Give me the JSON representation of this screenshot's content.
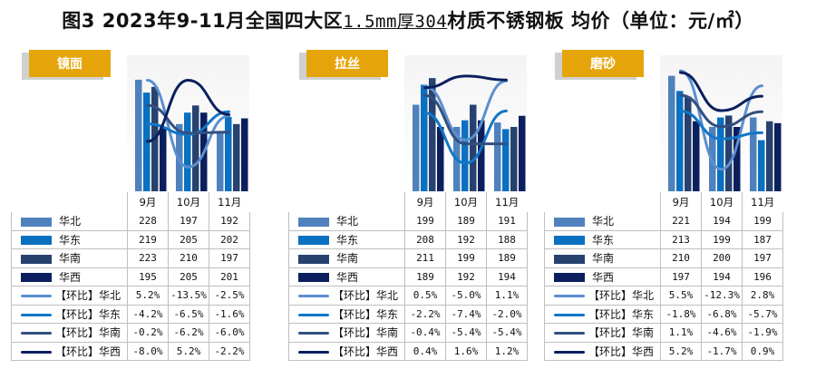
{
  "title": {
    "prefix": "图3 2023年9-11月全国四大区",
    "underlined": "1.5mm厚304",
    "suffix": "材质不锈钢板 均价（单位：元/㎡）"
  },
  "colors": {
    "tab": "#e5a50a",
    "华北": "#4f81bd",
    "华东": "#0a70c0",
    "华南": "#27426e",
    "华西": "#0b1f5e"
  },
  "chart_data": [
    {
      "type": "bar",
      "title": "镜面",
      "categories": [
        "9月",
        "10月",
        "11月"
      ],
      "series": [
        {
          "name": "华北",
          "values": [
            228,
            197,
            192
          ]
        },
        {
          "name": "华东",
          "values": [
            219,
            205,
            202
          ]
        },
        {
          "name": "华南",
          "values": [
            223,
            210,
            197
          ]
        },
        {
          "name": "华西",
          "values": [
            195,
            205,
            201
          ]
        }
      ],
      "mom_series": [
        {
          "name": "【环比】华北",
          "values": [
            "5.2%",
            "-13.5%",
            "-2.5%"
          ],
          "numeric": [
            5.2,
            -13.5,
            -2.5
          ]
        },
        {
          "name": "【环比】华东",
          "values": [
            "-4.2%",
            "-6.5%",
            "-1.6%"
          ],
          "numeric": [
            -4.2,
            -6.5,
            -1.6
          ]
        },
        {
          "name": "【环比】华南",
          "values": [
            "-0.2%",
            "-6.2%",
            "-6.0%"
          ],
          "numeric": [
            -0.2,
            -6.2,
            -6.0
          ]
        },
        {
          "name": "【环比】华西",
          "values": [
            "-8.0%",
            "5.2%",
            "-2.2%"
          ],
          "numeric": [
            -8.0,
            5.2,
            -2.2
          ]
        }
      ],
      "ylim": [
        150,
        240
      ],
      "y2lim": [
        -16,
        9
      ]
    },
    {
      "type": "bar",
      "title": "拉丝",
      "categories": [
        "9月",
        "10月",
        "11月"
      ],
      "series": [
        {
          "name": "华北",
          "values": [
            199,
            189,
            191
          ]
        },
        {
          "name": "华东",
          "values": [
            208,
            192,
            188
          ]
        },
        {
          "name": "华南",
          "values": [
            211,
            199,
            189
          ]
        },
        {
          "name": "华西",
          "values": [
            189,
            192,
            194
          ]
        }
      ],
      "mom_series": [
        {
          "name": "【环比】华北",
          "values": [
            "0.5%",
            "-5.0%",
            "1.1%"
          ],
          "numeric": [
            0.5,
            -5.0,
            1.1
          ]
        },
        {
          "name": "【环比】华东",
          "values": [
            "-2.2%",
            "-7.4%",
            "-2.0%"
          ],
          "numeric": [
            -2.2,
            -7.4,
            -2.0
          ]
        },
        {
          "name": "【环比】华南",
          "values": [
            "-0.4%",
            "-5.4%",
            "-5.4%"
          ],
          "numeric": [
            -0.4,
            -5.4,
            -5.4
          ]
        },
        {
          "name": "【环比】华西",
          "values": [
            "0.4%",
            "1.6%",
            "1.2%"
          ],
          "numeric": [
            0.4,
            1.6,
            1.2
          ]
        }
      ],
      "ylim": [
        160,
        218
      ],
      "y2lim": [
        -9,
        3
      ]
    },
    {
      "type": "bar",
      "title": "磨砂",
      "categories": [
        "9月",
        "10月",
        "11月"
      ],
      "series": [
        {
          "name": "华北",
          "values": [
            221,
            194,
            199
          ]
        },
        {
          "name": "华东",
          "values": [
            213,
            199,
            187
          ]
        },
        {
          "name": "华南",
          "values": [
            210,
            200,
            197
          ]
        },
        {
          "name": "华西",
          "values": [
            197,
            194,
            196
          ]
        }
      ],
      "mom_series": [
        {
          "name": "【环比】华北",
          "values": [
            "5.5%",
            "-12.3%",
            "2.8%"
          ],
          "numeric": [
            5.5,
            -12.3,
            2.8
          ]
        },
        {
          "name": "【环比】华东",
          "values": [
            "-1.8%",
            "-6.8%",
            "-5.7%"
          ],
          "numeric": [
            -1.8,
            -6.8,
            -5.7
          ]
        },
        {
          "name": "【环比】华南",
          "values": [
            "1.1%",
            "-4.6%",
            "-1.9%"
          ],
          "numeric": [
            1.1,
            -4.6,
            -1.9
          ]
        },
        {
          "name": "【环比】华西",
          "values": [
            "5.2%",
            "-1.7%",
            "0.9%"
          ],
          "numeric": [
            5.2,
            -1.7,
            0.9
          ]
        }
      ],
      "ylim": [
        160,
        228
      ],
      "y2lim": [
        -14,
        7
      ]
    }
  ]
}
